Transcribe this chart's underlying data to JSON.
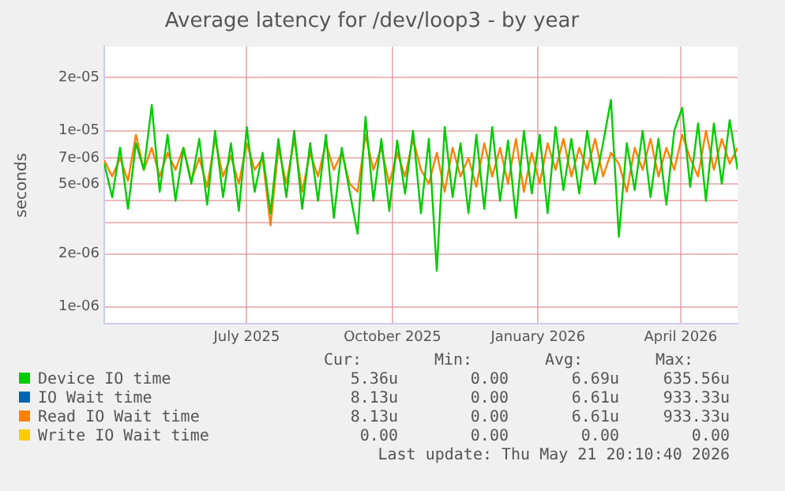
{
  "chart_data": {
    "type": "line",
    "title": "Average latency for /dev/loop3 - by year",
    "ylabel": "seconds",
    "log": "y",
    "grid": true,
    "legend": "bottom",
    "marker": "none",
    "line_style": "solid",
    "xlim": [
      "2025-04-16",
      "2026-05-21"
    ],
    "xticks": [
      {
        "value": "2025-07-15",
        "label": "July 2025"
      },
      {
        "value": "2025-10-15",
        "label": "October 2025"
      },
      {
        "value": "2026-01-15",
        "label": "January 2026"
      },
      {
        "value": "2026-04-15",
        "label": "April 2026"
      }
    ],
    "ylim": [
      8e-07,
      3e-05
    ],
    "yticks": [
      {
        "value": 1e-06,
        "label": "1e-06"
      },
      {
        "value": 2e-06,
        "label": "2e-06"
      },
      {
        "value": 3e-06,
        "label": null
      },
      {
        "value": 4e-06,
        "label": null
      },
      {
        "value": 5e-06,
        "label": "5e-06"
      },
      {
        "value": 7e-06,
        "label": "7e-06"
      },
      {
        "value": 1e-05,
        "label": "1e-05"
      },
      {
        "value": 2e-05,
        "label": "2e-05"
      }
    ],
    "x": [
      "2025-04-16",
      "2025-04-21",
      "2025-04-26",
      "2025-05-01",
      "2025-05-06",
      "2025-05-11",
      "2025-05-16",
      "2025-05-21",
      "2025-05-26",
      "2025-05-31",
      "2025-06-05",
      "2025-06-10",
      "2025-06-15",
      "2025-06-20",
      "2025-06-25",
      "2025-06-30",
      "2025-07-05",
      "2025-07-10",
      "2025-07-15",
      "2025-07-20",
      "2025-07-25",
      "2025-07-30",
      "2025-08-04",
      "2025-08-09",
      "2025-08-14",
      "2025-08-19",
      "2025-08-24",
      "2025-08-29",
      "2025-09-03",
      "2025-09-08",
      "2025-09-13",
      "2025-09-18",
      "2025-09-23",
      "2025-09-28",
      "2025-10-03",
      "2025-10-08",
      "2025-10-13",
      "2025-10-18",
      "2025-10-23",
      "2025-10-28",
      "2025-11-02",
      "2025-11-07",
      "2025-11-12",
      "2025-11-17",
      "2025-11-22",
      "2025-11-27",
      "2025-12-02",
      "2025-12-07",
      "2025-12-12",
      "2025-12-17",
      "2025-12-22",
      "2025-12-27",
      "2026-01-01",
      "2026-01-06",
      "2026-01-11",
      "2026-01-16",
      "2026-01-21",
      "2026-01-26",
      "2026-01-31",
      "2026-02-05",
      "2026-02-10",
      "2026-02-15",
      "2026-02-20",
      "2026-02-25",
      "2026-03-02",
      "2026-03-07",
      "2026-03-12",
      "2026-03-17",
      "2026-03-22",
      "2026-03-27",
      "2026-04-01",
      "2026-04-06",
      "2026-04-11",
      "2026-04-16",
      "2026-04-21",
      "2026-04-26",
      "2026-05-01",
      "2026-05-06",
      "2026-05-11",
      "2026-05-16",
      "2026-05-21"
    ],
    "series": [
      {
        "name": "Device IO time",
        "color": "#00cc00",
        "values": [
          6.5e-06,
          4.2e-06,
          8e-06,
          3.6e-06,
          8.5e-06,
          6e-06,
          1.4e-05,
          4.5e-06,
          9.5e-06,
          4e-06,
          8e-06,
          5e-06,
          9e-06,
          3.8e-06,
          1e-05,
          4.2e-06,
          8.5e-06,
          3.5e-06,
          1.05e-05,
          4.5e-06,
          7.5e-06,
          3.4e-06,
          9e-06,
          4.2e-06,
          1e-05,
          3.6e-06,
          8.5e-06,
          4e-06,
          9.5e-06,
          3.2e-06,
          8e-06,
          4.5e-06,
          2.6e-06,
          1.2e-05,
          4e-06,
          9e-06,
          3.5e-06,
          8.8e-06,
          4.4e-06,
          1e-05,
          3.4e-06,
          9e-06,
          1.6e-06,
          1.05e-05,
          4.2e-06,
          8.5e-06,
          3.4e-06,
          9.5e-06,
          3.6e-06,
          1.05e-05,
          4e-06,
          8.8e-06,
          3.2e-06,
          1e-05,
          4.4e-06,
          9.5e-06,
          3.4e-06,
          1.05e-05,
          4.6e-06,
          9e-06,
          4.4e-06,
          1e-05,
          5e-06,
          8.5e-06,
          1.5e-05,
          2.5e-06,
          8.5e-06,
          4.6e-06,
          1e-05,
          4.2e-06,
          9e-06,
          3.8e-06,
          1e-05,
          1.35e-05,
          4.8e-06,
          1.1e-05,
          4e-06,
          1.1e-05,
          5e-06,
          1.15e-05,
          6e-06
        ]
      },
      {
        "name": "IO Wait time",
        "color": "#0066b3",
        "values": [
          null,
          null,
          null,
          null,
          null,
          null,
          null,
          null,
          null,
          null,
          null,
          null,
          null,
          null,
          null,
          null,
          null,
          null,
          null,
          null,
          null,
          null,
          null,
          null,
          null,
          null,
          null,
          null,
          null,
          null,
          null,
          null,
          null,
          null,
          null,
          null,
          null,
          null,
          null,
          null,
          null,
          null,
          null,
          null,
          null,
          null,
          null,
          null,
          null,
          null,
          null,
          null,
          null,
          null,
          null,
          null,
          null,
          null,
          null,
          null,
          null,
          null,
          null,
          null,
          null,
          null,
          null,
          null,
          null,
          null,
          null,
          null,
          null,
          null,
          null,
          null,
          null,
          null,
          null,
          null,
          null
        ]
      },
      {
        "name": "Read IO Wait time",
        "color": "#ff8000",
        "values": [
          6.8e-06,
          5.5e-06,
          7e-06,
          5.2e-06,
          9.5e-06,
          6e-06,
          8e-06,
          5.5e-06,
          7.5e-06,
          6e-06,
          8e-06,
          5.2e-06,
          7e-06,
          4.8e-06,
          9e-06,
          5.5e-06,
          7.2e-06,
          5e-06,
          8.5e-06,
          6e-06,
          7e-06,
          2.9e-06,
          8e-06,
          5e-06,
          9e-06,
          4.5e-06,
          7.5e-06,
          5.5e-06,
          8.5e-06,
          6e-06,
          7.5e-06,
          5e-06,
          4.5e-06,
          9.5e-06,
          6e-06,
          8e-06,
          5e-06,
          7.5e-06,
          5.5e-06,
          9e-06,
          6e-06,
          5e-06,
          7.5e-06,
          4.5e-06,
          8e-06,
          5.5e-06,
          7e-06,
          4.8e-06,
          8.5e-06,
          5.5e-06,
          8e-06,
          5e-06,
          9e-06,
          4.5e-06,
          7.5e-06,
          5e-06,
          8.5e-06,
          6e-06,
          9e-06,
          5.5e-06,
          8e-06,
          6e-06,
          9e-06,
          5.5e-06,
          7.5e-06,
          6.5e-06,
          4.5e-06,
          8e-06,
          6e-06,
          9e-06,
          5.5e-06,
          8e-06,
          6e-06,
          9.5e-06,
          7e-06,
          5.5e-06,
          1e-05,
          6e-06,
          9e-06,
          6.5e-06,
          8e-06
        ]
      },
      {
        "name": "Write IO Wait time",
        "color": "#ffcc00",
        "values": [
          null,
          null,
          null,
          null,
          null,
          null,
          null,
          null,
          null,
          null,
          null,
          null,
          null,
          null,
          null,
          null,
          null,
          null,
          null,
          null,
          null,
          null,
          null,
          null,
          null,
          null,
          null,
          null,
          null,
          null,
          null,
          null,
          null,
          null,
          null,
          null,
          null,
          null,
          null,
          null,
          null,
          null,
          null,
          null,
          null,
          null,
          null,
          null,
          null,
          null,
          null,
          null,
          null,
          null,
          null,
          null,
          null,
          null,
          null,
          null,
          null,
          null,
          null,
          null,
          null,
          null,
          null,
          null,
          null,
          null,
          null,
          null,
          null,
          null,
          null,
          null,
          null,
          null,
          null,
          null,
          null
        ]
      }
    ],
    "annotations": [
      "Cur:",
      "Min:",
      "Avg:",
      "Max:",
      "5.36u",
      "0.00",
      "6.69u",
      "635.56u",
      "8.13u",
      "0.00",
      "6.61u",
      "933.33u",
      "8.13u",
      "0.00",
      "6.61u",
      "933.33u",
      "0.00",
      "0.00",
      "0.00",
      "0.00",
      "Last update: Thu May 21 20:10:40 2026"
    ]
  }
}
